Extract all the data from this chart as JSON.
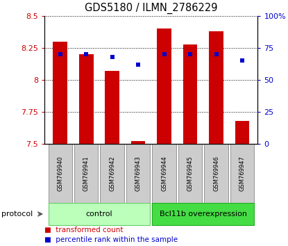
{
  "title": "GDS5180 / ILMN_2786229",
  "samples": [
    "GSM769940",
    "GSM769941",
    "GSM769942",
    "GSM769943",
    "GSM769944",
    "GSM769945",
    "GSM769946",
    "GSM769947"
  ],
  "transformed_counts": [
    8.3,
    8.2,
    8.07,
    7.52,
    8.4,
    8.28,
    8.38,
    7.68
  ],
  "percentile_ranks": [
    70,
    70,
    68,
    62,
    70,
    70,
    70,
    65
  ],
  "bar_color": "#cc0000",
  "dot_color": "#0000cc",
  "ylim_left": [
    7.5,
    8.5
  ],
  "ylim_right": [
    0,
    100
  ],
  "yticks_left": [
    7.5,
    7.75,
    8.0,
    8.25,
    8.5
  ],
  "yticks_right": [
    0,
    25,
    50,
    75,
    100
  ],
  "ytick_labels_left": [
    "7.5",
    "7.75",
    "8",
    "8.25",
    "8.5"
  ],
  "ytick_labels_right": [
    "0",
    "25",
    "50",
    "75",
    "100%"
  ],
  "groups": [
    {
      "label": "control",
      "start": 0,
      "end": 3,
      "color": "#bbffbb",
      "edgecolor": "#66cc66"
    },
    {
      "label": "Bcl11b overexpression",
      "start": 4,
      "end": 7,
      "color": "#44dd44",
      "edgecolor": "#22aa22"
    }
  ],
  "protocol_label": "protocol",
  "bar_width": 0.55,
  "bar_bottom": 7.5,
  "background_color": "#ffffff",
  "sample_box_color": "#cccccc",
  "sample_box_edge": "#888888"
}
